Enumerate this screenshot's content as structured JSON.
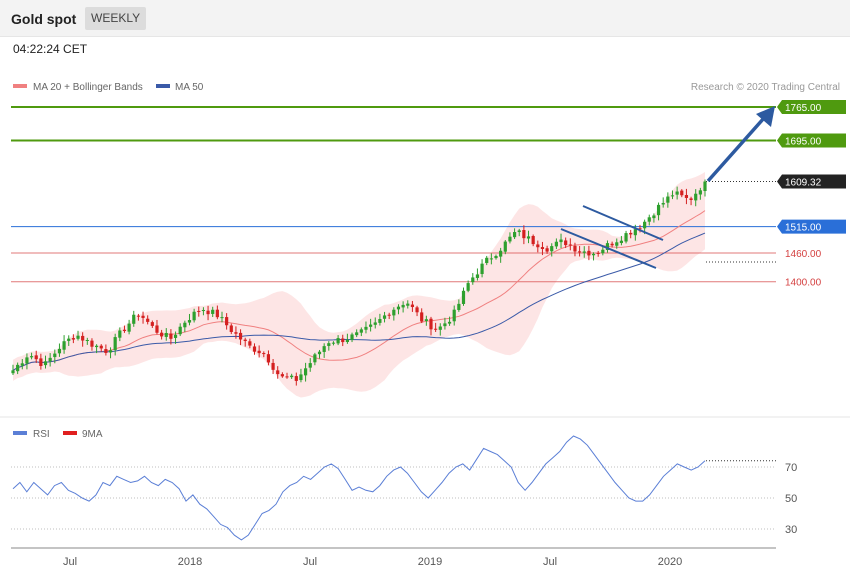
{
  "header": {
    "title": "Gold spot",
    "period_button": "WEEKLY",
    "timestamp": "04:22:24 CET"
  },
  "colors": {
    "bollinger_fill": "#fde0e0",
    "ma20": "#f08080",
    "ma50": "#3a5aa8",
    "bull": "#2ea02e",
    "bear": "#d42020",
    "resistance": "#4f9a0f",
    "support_blue": "#2a6fd8",
    "support_red": "#d44040",
    "price_tag": "#222222",
    "arrow": "#2d5aa0",
    "rsi": "#5b7fd6",
    "rsi_ma": "#e02020"
  },
  "chart_data": [
    {
      "type": "candlestick",
      "title": "Gold spot",
      "legend": [
        {
          "name": "MA 20 + Bollinger Bands",
          "color": "#f08080"
        },
        {
          "name": "MA 50",
          "color": "#3a5aa8"
        }
      ],
      "legend_position": "top-left",
      "credit": "Research © 2020 Trading Central",
      "x_ticks": [
        "Jul",
        "2018",
        "Jul",
        "2019",
        "Jul",
        "2020"
      ],
      "levels": [
        {
          "label": "1765.00",
          "value": 1765,
          "kind": "resistance"
        },
        {
          "label": "1695.00",
          "value": 1695,
          "kind": "resistance"
        },
        {
          "label": "1609.32",
          "value": 1609.32,
          "kind": "last-price"
        },
        {
          "label": "1515.00",
          "value": 1515,
          "kind": "support-blue"
        },
        {
          "label": "1460.00",
          "value": 1460,
          "kind": "support-red"
        },
        {
          "label": "1400.00",
          "value": 1400,
          "kind": "support-red"
        }
      ],
      "ohlc_close_anchors": [
        1215,
        1250,
        1225,
        1265,
        1290,
        1270,
        1255,
        1300,
        1335,
        1300,
        1280,
        1320,
        1345,
        1330,
        1295,
        1265,
        1250,
        1200,
        1195,
        1235,
        1275,
        1280,
        1290,
        1310,
        1340,
        1360,
        1320,
        1300,
        1330,
        1400,
        1440,
        1470,
        1505,
        1485,
        1470,
        1485,
        1465,
        1460,
        1480,
        1500,
        1520,
        1555,
        1585,
        1570,
        1609.32
      ],
      "forecast_target": 1765
    },
    {
      "type": "line",
      "legend": [
        {
          "name": "RSI",
          "color": "#5b7fd6"
        },
        {
          "name": "9MA",
          "color": "#e02020"
        }
      ],
      "y_ticks": [
        "70",
        "50",
        "30"
      ],
      "ylim": [
        20,
        85
      ],
      "rsi_values": [
        56,
        60,
        54,
        60,
        56,
        52,
        58,
        60,
        55,
        53,
        50,
        48,
        52,
        60,
        58,
        64,
        62,
        60,
        61,
        64,
        60,
        58,
        62,
        60,
        56,
        48,
        52,
        46,
        43,
        38,
        33,
        31,
        26,
        23,
        26,
        33,
        40,
        42,
        46,
        54,
        58,
        60,
        64,
        62,
        66,
        70,
        72,
        69,
        62,
        55,
        57,
        55,
        54,
        58,
        64,
        68,
        70,
        66,
        60,
        54,
        50,
        55,
        60,
        66,
        70,
        72,
        68,
        75,
        82,
        80,
        78,
        74,
        70,
        60,
        55,
        60,
        66,
        72,
        76,
        80,
        86,
        90,
        88,
        84,
        78,
        72,
        66,
        60,
        55,
        50,
        48,
        48,
        52,
        58,
        64,
        68,
        72,
        70,
        68,
        70,
        74
      ]
    }
  ]
}
